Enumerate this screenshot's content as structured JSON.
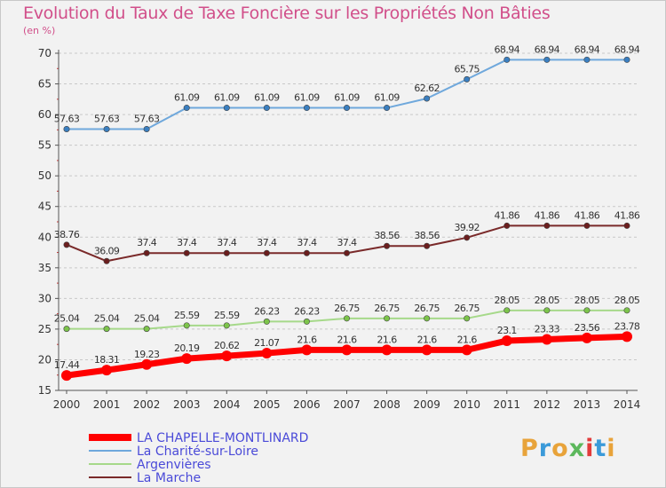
{
  "header": {
    "title": "Evolution du Taux de Taxe Foncière sur les Propriétés Non Bâties",
    "subtitle": "(en %)"
  },
  "logo": {
    "text": "Proxiti",
    "colors": [
      "#e8a33a",
      "#3b9ad9",
      "#e8a33a",
      "#5cb85c",
      "#e23b3b",
      "#3b9ad9",
      "#e8a33a"
    ]
  },
  "chart_data": {
    "type": "line",
    "x": [
      2000,
      2001,
      2002,
      2003,
      2004,
      2005,
      2006,
      2007,
      2008,
      2009,
      2010,
      2011,
      2012,
      2013,
      2014
    ],
    "ylim": [
      15,
      70
    ],
    "yticks": [
      15,
      20,
      25,
      30,
      35,
      40,
      45,
      50,
      55,
      60,
      65,
      70
    ],
    "grid": "horizontal dashed",
    "legend_position": "bottom-left",
    "series": [
      {
        "name": "La Charité-sur-Loire",
        "color": "#6fa8dc",
        "marker": "#3a7fc1",
        "values": [
          57.63,
          57.63,
          57.63,
          61.09,
          61.09,
          61.09,
          61.09,
          61.09,
          61.09,
          62.62,
          65.75,
          68.94,
          68.94,
          68.94,
          68.94
        ],
        "labels": [
          "57.63",
          "57.63",
          "57.63",
          "61.09",
          "61.09",
          "61.09",
          "61.09",
          "61.09",
          "61.09",
          "62.62",
          "65.75",
          "68.94",
          "68.94",
          "68.94",
          "68.94"
        ]
      },
      {
        "name": "La Marche",
        "color": "#7a2a2a",
        "marker": "#6b1e1e",
        "values": [
          38.76,
          36.09,
          37.4,
          37.4,
          37.4,
          37.4,
          37.4,
          37.4,
          38.56,
          38.56,
          39.92,
          41.86,
          41.86,
          41.86,
          41.86
        ],
        "labels": [
          "38.76",
          "36.09",
          "37.4",
          "37.4",
          "37.4",
          "37.4",
          "37.4",
          "37.4",
          "38.56",
          "38.56",
          "39.92",
          "41.86",
          "41.86",
          "41.86",
          "41.86"
        ]
      },
      {
        "name": "Argenvières",
        "color": "#a6d98a",
        "marker": "#7cc44a",
        "values": [
          25.04,
          25.04,
          25.04,
          25.59,
          25.59,
          26.23,
          26.23,
          26.75,
          26.75,
          26.75,
          26.75,
          28.05,
          28.05,
          28.05,
          28.05
        ],
        "labels": [
          "25.04",
          "25.04",
          "25.04",
          "25.59",
          "25.59",
          "26.23",
          "26.23",
          "26.75",
          "26.75",
          "26.75",
          "26.75",
          "28.05",
          "28.05",
          "28.05",
          "28.05"
        ]
      },
      {
        "name": "LA CHAPELLE-MONTLINARD",
        "color": "#ff0000",
        "marker": "#ff0000",
        "values": [
          17.44,
          18.31,
          19.23,
          20.19,
          20.62,
          21.07,
          21.6,
          21.6,
          21.6,
          21.6,
          21.6,
          23.1,
          23.33,
          23.56,
          23.78
        ],
        "labels": [
          "17.44",
          "18.31",
          "19.23",
          "20.19",
          "20.62",
          "21.07",
          "21.6",
          "21.6",
          "21.6",
          "21.6",
          "21.6",
          "23.1",
          "23.33",
          "23.56",
          "23.78"
        ]
      }
    ],
    "legend": [
      {
        "name": "LA CHAPELLE-MONTLINARD",
        "color": "#ff0000",
        "text_color": "#4a4ad8",
        "thick": true
      },
      {
        "name": "La Charité-sur-Loire",
        "color": "#6fa8dc",
        "text_color": "#4a4ad8",
        "thick": false
      },
      {
        "name": "Argenvières",
        "color": "#a6d98a",
        "text_color": "#4a4ad8",
        "thick": false
      },
      {
        "name": "La Marche",
        "color": "#7a2a2a",
        "text_color": "#4a4ad8",
        "thick": false
      }
    ]
  }
}
